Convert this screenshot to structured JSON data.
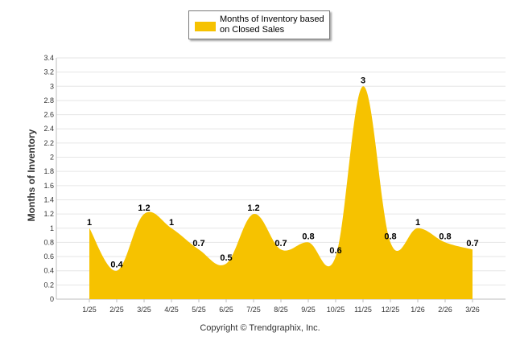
{
  "chart_data": {
    "type": "area",
    "categories": [
      "1/25",
      "2/25",
      "3/25",
      "4/25",
      "5/25",
      "6/25",
      "7/25",
      "8/25",
      "9/25",
      "10/25",
      "11/25",
      "12/25",
      "1/26",
      "2/26",
      "3/26"
    ],
    "series": [
      {
        "name": "Months of Inventory based on Closed Sales",
        "color": "#f6c200",
        "values": [
          1,
          0.4,
          1.2,
          1,
          0.7,
          0.5,
          1.2,
          0.7,
          0.8,
          0.6,
          3,
          0.8,
          1,
          0.8,
          0.7
        ]
      }
    ],
    "ylabel": "Months of Inventory",
    "ylim": [
      0,
      3.4
    ],
    "yticks": [
      "0",
      "0.2",
      "0.4",
      "0.6",
      "0.8",
      "1",
      "1.2",
      "1.4",
      "1.6",
      "1.8",
      "2",
      "2.2",
      "2.4",
      "2.6",
      "2.8",
      "3",
      "3.2",
      "3.4"
    ],
    "grid": true,
    "legend_position": "top-center"
  },
  "legend": {
    "label": "Months of Inventory based on Closed Sales"
  },
  "footer": {
    "copyright": "Copyright © Trendgraphix, Inc."
  }
}
